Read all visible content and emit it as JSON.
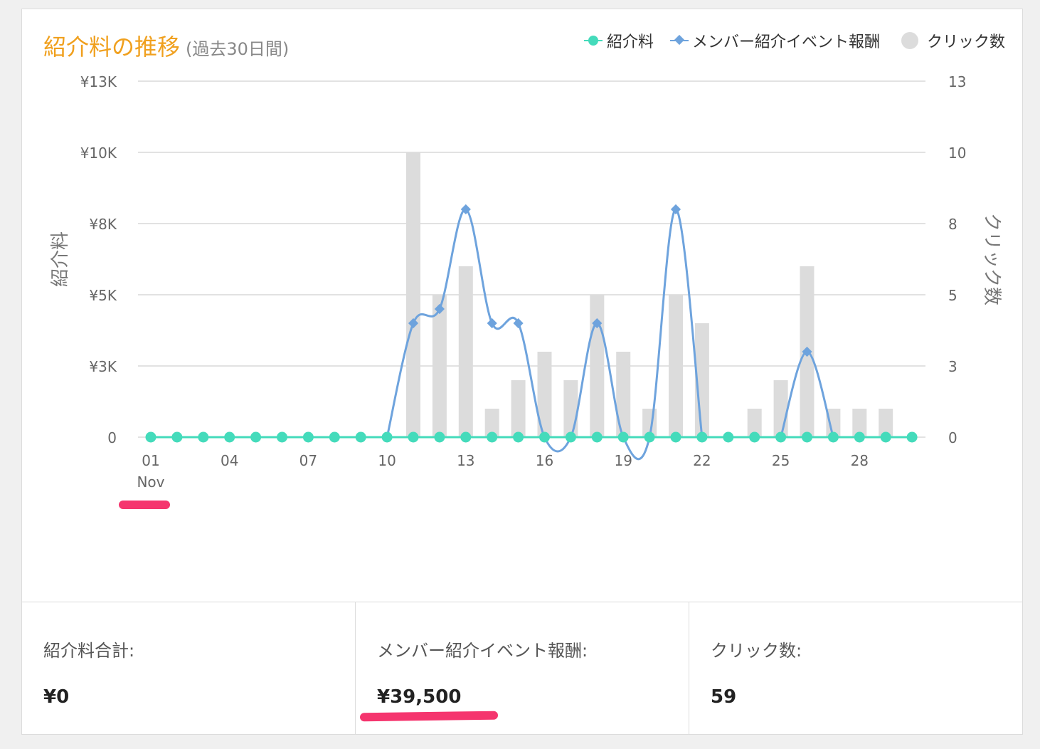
{
  "chart": {
    "title": "紹介料の推移",
    "subtitle": "(過去30日間)",
    "legend": [
      {
        "label": "紹介料",
        "marker": "dot",
        "color": "#44dbbb"
      },
      {
        "label": "メンバー紹介イベント報酬",
        "marker": "diamond",
        "color": "#6ea3dd"
      },
      {
        "label": "クリック数",
        "marker": "circle",
        "color": "#dcdcdc"
      }
    ]
  },
  "chart_data": {
    "type": "bar+line",
    "x": [
      "01",
      "02",
      "03",
      "04",
      "05",
      "06",
      "07",
      "08",
      "09",
      "10",
      "11",
      "12",
      "13",
      "14",
      "15",
      "16",
      "17",
      "18",
      "19",
      "20",
      "21",
      "22",
      "23",
      "24",
      "25",
      "26",
      "27",
      "28",
      "29",
      "30"
    ],
    "x_tick_labels": [
      "01",
      "04",
      "07",
      "10",
      "13",
      "16",
      "19",
      "22",
      "25",
      "28"
    ],
    "x_month_label": "Nov",
    "y_left": {
      "label": "紹介料",
      "ticks": [
        "0",
        "¥3K",
        "¥5K",
        "¥8K",
        "¥10K",
        "¥13K"
      ],
      "range": [
        0,
        12500
      ]
    },
    "y_right": {
      "label": "クリック数",
      "ticks": [
        "0",
        "3",
        "5",
        "8",
        "10",
        "13"
      ],
      "range": [
        0,
        12.5
      ]
    },
    "series": [
      {
        "name": "クリック数",
        "type": "bar",
        "axis": "right",
        "color": "#dcdcdc",
        "values": [
          0,
          0,
          0,
          0,
          0,
          0,
          0,
          0,
          0,
          0,
          10,
          5,
          6,
          1,
          2,
          3,
          2,
          5,
          3,
          1,
          5,
          4,
          0,
          1,
          2,
          6,
          1,
          1,
          1,
          0
        ]
      },
      {
        "name": "紹介料",
        "type": "line",
        "axis": "left",
        "color": "#44dbbb",
        "values": [
          0,
          0,
          0,
          0,
          0,
          0,
          0,
          0,
          0,
          0,
          0,
          0,
          0,
          0,
          0,
          0,
          0,
          0,
          0,
          0,
          0,
          0,
          0,
          0,
          0,
          0,
          0,
          0,
          0,
          0
        ]
      },
      {
        "name": "メンバー紹介イベント報酬",
        "type": "line",
        "axis": "left",
        "color": "#6ea3dd",
        "values": [
          null,
          null,
          null,
          null,
          null,
          null,
          null,
          null,
          null,
          null,
          4000,
          4500,
          8000,
          4000,
          4000,
          0,
          0,
          4000,
          0,
          0,
          8000,
          0,
          null,
          null,
          0,
          3000,
          0,
          null,
          null,
          null
        ]
      }
    ],
    "grid": true
  },
  "stats": [
    {
      "label": "紹介料合計:",
      "value": "¥0"
    },
    {
      "label": "メンバー紹介イベント報酬:",
      "value": "¥39,500"
    },
    {
      "label": "クリック数:",
      "value": "59"
    }
  ]
}
